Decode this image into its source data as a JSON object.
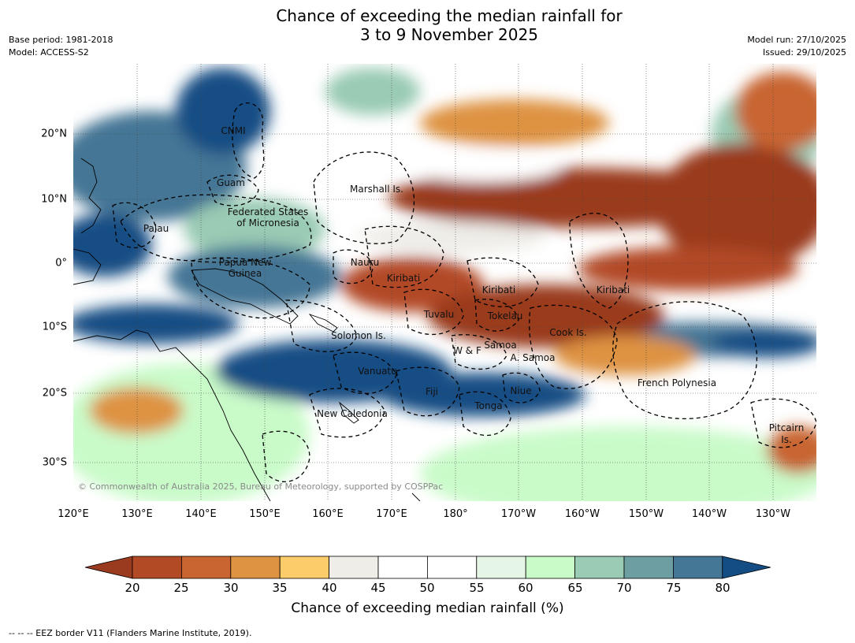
{
  "title": {
    "line1": "Chance of exceeding the median rainfall for",
    "line2": "3 to 9 November 2025"
  },
  "meta": {
    "base_period": "Base period: 1981-2018",
    "model": "Model: ACCESS-S2",
    "model_run": "Model run: 27/10/2025",
    "issued": "Issued: 29/10/2025"
  },
  "map": {
    "longitude_labels": [
      "120°E",
      "130°E",
      "140°E",
      "150°E",
      "160°E",
      "170°E",
      "180°",
      "170°W",
      "160°W",
      "150°W",
      "140°W",
      "130°W"
    ],
    "latitude_labels": [
      "20°N",
      "10°N",
      "0°",
      "10°S",
      "20°S",
      "30°S"
    ],
    "places": [
      {
        "id": "cnmi",
        "label": "CNMI"
      },
      {
        "id": "guam",
        "label": "Guam"
      },
      {
        "id": "marshall",
        "label": "Marshall Is."
      },
      {
        "id": "fsm1",
        "label": "Federated States"
      },
      {
        "id": "fsm2",
        "label": "of Micronesia"
      },
      {
        "id": "palau",
        "label": "Palau"
      },
      {
        "id": "png1",
        "label": "Papua New"
      },
      {
        "id": "png2",
        "label": "Guinea"
      },
      {
        "id": "nauru",
        "label": "Nauru"
      },
      {
        "id": "kiribati1",
        "label": "Kiribati"
      },
      {
        "id": "kiribati2",
        "label": "Kiribati"
      },
      {
        "id": "kiribati3",
        "label": "Kiribati"
      },
      {
        "id": "tuvalu",
        "label": "Tuvalu"
      },
      {
        "id": "tokelau",
        "label": "Tokelau"
      },
      {
        "id": "cook",
        "label": "Cook Is."
      },
      {
        "id": "solomon",
        "label": "Solomon Is."
      },
      {
        "id": "wf",
        "label": "W & F"
      },
      {
        "id": "samoa",
        "label": "Samoa"
      },
      {
        "id": "asamoa",
        "label": "A. Samoa"
      },
      {
        "id": "vanuatu",
        "label": "Vanuatu"
      },
      {
        "id": "fiji",
        "label": "Fiji"
      },
      {
        "id": "niue",
        "label": "Niue"
      },
      {
        "id": "tonga",
        "label": "Tonga"
      },
      {
        "id": "frenchpoly",
        "label": "French Polynesia"
      },
      {
        "id": "newcal",
        "label": "New Caledonia"
      },
      {
        "id": "pitcairn1",
        "label": "Pitcairn"
      },
      {
        "id": "pitcairn2",
        "label": "Is."
      }
    ],
    "copyright": "© Commonwealth of Australia 2025, Bureau of Meteorology, supported by COSPPac"
  },
  "colorbar": {
    "ticks": [
      "20",
      "25",
      "30",
      "35",
      "40",
      "45",
      "50",
      "55",
      "60",
      "65",
      "70",
      "75",
      "80"
    ],
    "colors": [
      "#9a3a1e",
      "#b24a25",
      "#c86530",
      "#de9343",
      "#fccb6a",
      "#eeede8",
      "#ffffff",
      "#ffffff",
      "#e6f6e6",
      "#c9fbc9",
      "#9acbb4",
      "#6c9ea2",
      "#447695",
      "#134d84"
    ],
    "label": "Chance of exceeding median rainfall (%)"
  },
  "footer": "--  --  -- EEZ border V11 (Flanders Marine Institute, 2019)."
}
